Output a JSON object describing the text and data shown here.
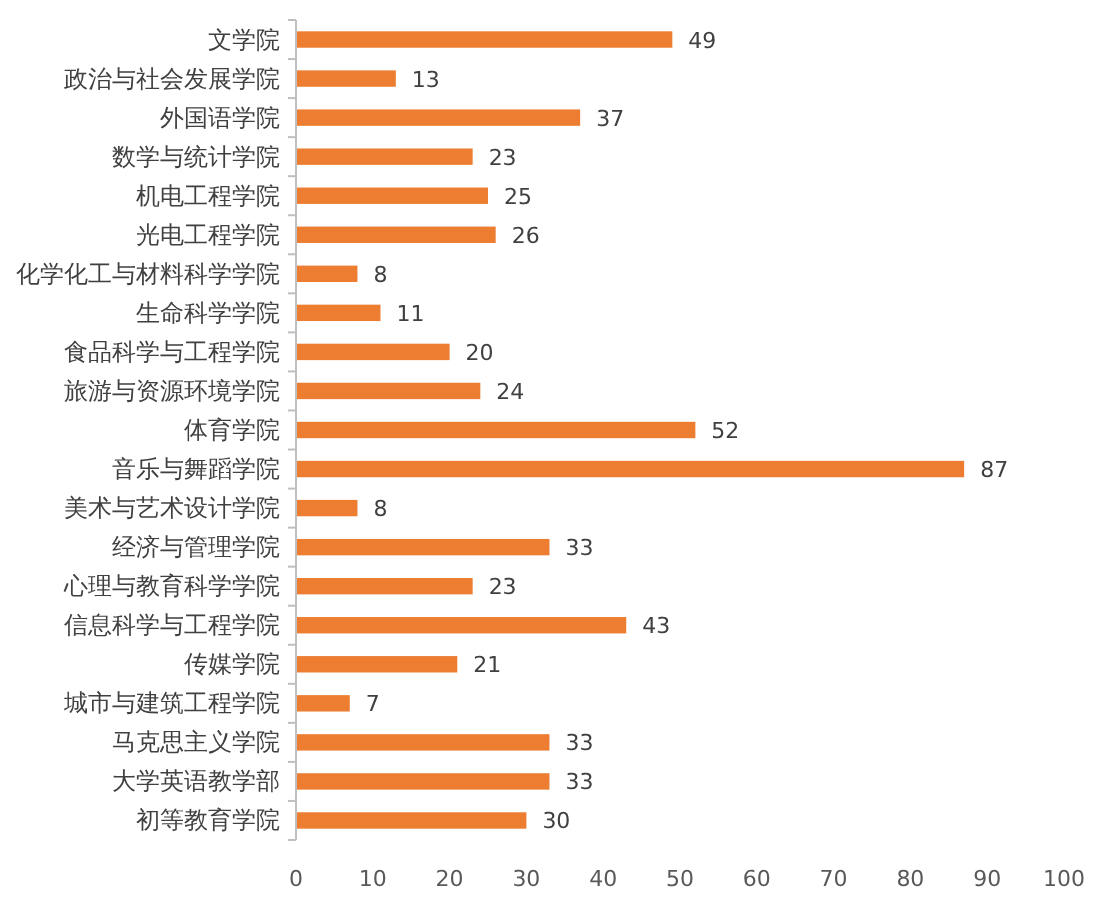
{
  "chart_data": {
    "type": "bar",
    "orientation": "horizontal",
    "categories": [
      "文学院",
      "政治与社会发展学院",
      "外国语学院",
      "数学与统计学院",
      "机电工程学院",
      "光电工程学院",
      "化学化工与材料科学学院",
      "生命科学学院",
      "食品科学与工程学院",
      "旅游与资源环境学院",
      "体育学院",
      "音乐与舞蹈学院",
      "美术与艺术设计学院",
      "经济与管理学院",
      "心理与教育科学学院",
      "信息科学与工程学院",
      "传媒学院",
      "城市与建筑工程学院",
      "马克思主义学院",
      "大学英语教学部",
      "初等教育学院"
    ],
    "values": [
      49,
      13,
      37,
      23,
      25,
      26,
      8,
      11,
      20,
      24,
      52,
      87,
      8,
      33,
      23,
      43,
      21,
      7,
      33,
      33,
      30
    ],
    "color": "#ed7d31",
    "xlim": [
      0,
      100
    ],
    "xticks": [
      0,
      10,
      20,
      30,
      40,
      50,
      60,
      70,
      80,
      90,
      100
    ],
    "data_labels": true,
    "grid": false
  }
}
